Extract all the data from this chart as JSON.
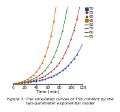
{
  "title": "Figure 3: The simulated curves of TSS content by the\ntwo-parameter exponential model",
  "xlabel": "Time (min)",
  "xlim": [
    0,
    120
  ],
  "ylim": [
    0,
    0.55
  ],
  "xticks": [
    0,
    20,
    40,
    60,
    80,
    100,
    120
  ],
  "params": [
    {
      "label": "50",
      "dot_color": "#1f3d91",
      "line_color": "#3355bb",
      "marker": "s",
      "a": 0.008,
      "b": 0.03
    },
    {
      "label": "55",
      "dot_color": "#cc2222",
      "line_color": "#cc3333",
      "marker": "o",
      "a": 0.009,
      "b": 0.036
    },
    {
      "label": "60",
      "dot_color": "#1a7a1a",
      "line_color": "#2a8a2a",
      "marker": "^",
      "a": 0.01,
      "b": 0.043
    },
    {
      "label": "65",
      "dot_color": "#d96000",
      "line_color": "#e07010",
      "marker": "s",
      "a": 0.012,
      "b": 0.052
    }
  ],
  "t_pts": [
    0,
    5,
    10,
    15,
    20,
    25,
    30,
    35,
    40,
    45,
    50,
    55,
    60,
    65,
    70,
    75,
    80,
    85,
    90,
    95,
    100,
    105,
    110
  ],
  "bg_color": "#ffffff",
  "title_fontsize": 4.2,
  "legend_fontsize": 3.8,
  "axis_fontsize": 4.5,
  "tick_fontsize": 4.0
}
